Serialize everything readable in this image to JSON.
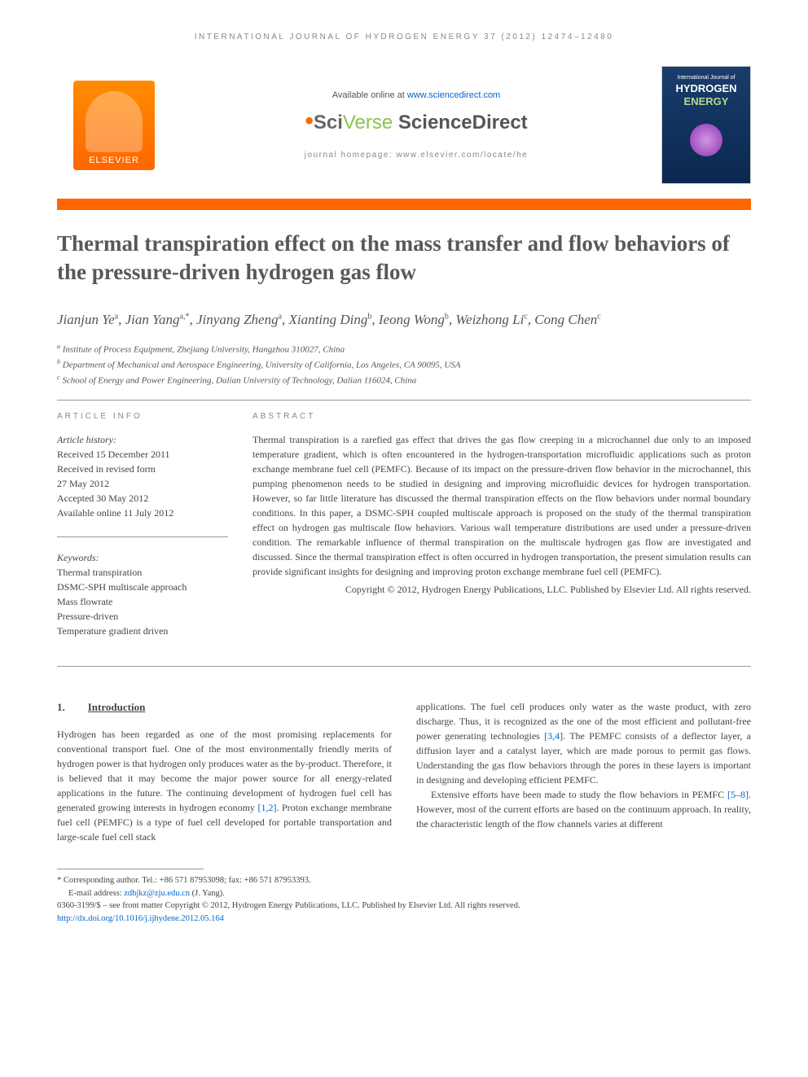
{
  "header": {
    "running": "INTERNATIONAL JOURNAL OF HYDROGEN ENERGY 37 (2012) 12474–12480",
    "available_prefix": "Available online at ",
    "available_link": "www.sciencedirect.com",
    "sciverse_sci": "Sci",
    "sciverse_verse": "Verse",
    "sciverse_sd": " ScienceDirect",
    "homepage": "journal homepage: www.elsevier.com/locate/he",
    "elsevier": "ELSEVIER",
    "cover_small": "International Journal of",
    "cover_hydrogen": "HYDROGEN",
    "cover_energy": "ENERGY"
  },
  "title": "Thermal transpiration effect on the mass transfer and flow behaviors of the pressure-driven hydrogen gas flow",
  "authors_html": "Jianjun Ye<sup>a</sup>, Jian Yang<sup>a,*</sup>, Jinyang Zheng<sup>a</sup>, Xianting Ding<sup>b</sup>, Ieong Wong<sup>b</sup>, Weizhong Li<sup>c</sup>, Cong Chen<sup>c</sup>",
  "affiliations": {
    "a": "Institute of Process Equipment, Zhejiang University, Hangzhou 310027, China",
    "b": "Department of Mechanical and Aerospace Engineering, University of California, Los Angeles, CA 90095, USA",
    "c": "School of Energy and Power Engineering, Dalian University of Technology, Dalian 116024, China"
  },
  "info": {
    "heading": "ARTICLE INFO",
    "history_label": "Article history:",
    "received": "Received 15 December 2011",
    "revised1": "Received in revised form",
    "revised2": "27 May 2012",
    "accepted": "Accepted 30 May 2012",
    "online": "Available online 11 July 2012",
    "keywords_label": "Keywords:",
    "keywords": [
      "Thermal transpiration",
      "DSMC-SPH multiscale approach",
      "Mass flowrate",
      "Pressure-driven",
      "Temperature gradient driven"
    ]
  },
  "abstract": {
    "heading": "ABSTRACT",
    "text": "Thermal transpiration is a rarefied gas effect that drives the gas flow creeping in a microchannel due only to an imposed temperature gradient, which is often encountered in the hydrogen-transportation microfluidic applications such as proton exchange membrane fuel cell (PEMFC). Because of its impact on the pressure-driven flow behavior in the microchannel, this pumping phenomenon needs to be studied in designing and improving microfluidic devices for hydrogen transportation. However, so far little literature has discussed the thermal transpiration effects on the flow behaviors under normal boundary conditions. In this paper, a DSMC-SPH coupled multiscale approach is proposed on the study of the thermal transpiration effect on hydrogen gas multiscale flow behaviors. Various wall temperature distributions are used under a pressure-driven condition. The remarkable influence of thermal transpiration on the multiscale hydrogen gas flow are investigated and discussed. Since the thermal transpiration effect is often occurred in hydrogen transportation, the present simulation results can provide significant insights for designing and improving proton exchange membrane fuel cell (PEMFC).",
    "copyright": "Copyright © 2012, Hydrogen Energy Publications, LLC. Published by Elsevier Ltd. All rights reserved."
  },
  "section": {
    "number": "1.",
    "title": "Introduction",
    "col1": "Hydrogen has been regarded as one of the most promising replacements for conventional transport fuel. One of the most environmentally friendly merits of hydrogen power is that hydrogen only produces water as the by-product. Therefore, it is believed that it may become the major power source for all energy-related applications in the future. The continuing development of hydrogen fuel cell has generated growing interests in hydrogen economy ",
    "ref1": "[1,2]",
    "col1b": ". Proton exchange membrane fuel cell (PEMFC) is a type of fuel cell developed for portable transportation and large-scale fuel cell stack",
    "col2a": "applications. The fuel cell produces only water as the waste product, with zero discharge. Thus, it is recognized as the one of the most efficient and pollutant-free power generating technologies ",
    "ref2": "[3,4]",
    "col2b": ". The PEMFC consists of a deflector layer, a diffusion layer and a catalyst layer, which are made porous to permit gas flows. Understanding the gas flow behaviors through the pores in these layers is important in designing and developing efficient PEMFC.",
    "col2c": "Extensive efforts have been made to study the flow behaviors in PEMFC ",
    "ref3": "[5–8]",
    "col2d": ". However, most of the current efforts are based on the continuum approach. In reality, the characteristic length of the flow channels varies at different"
  },
  "footer": {
    "corr_label": "* Corresponding author.",
    "corr_details": " Tel.: +86 571 87953098; fax: +86 571 87953393.",
    "email_label": "E-mail address: ",
    "email": "zdhjkz@zju.edu.cn",
    "email_suffix": " (J. Yang).",
    "line1": "0360-3199/$ – see front matter Copyright © 2012, Hydrogen Energy Publications, LLC. Published by Elsevier Ltd. All rights reserved.",
    "doi": "http://dx.doi.org/10.1016/j.ijhydene.2012.05.164"
  }
}
